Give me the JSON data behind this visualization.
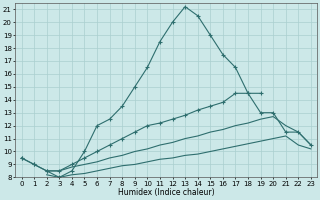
{
  "xlabel": "Humidex (Indice chaleur)",
  "bg_color": "#cce8e8",
  "grid_color": "#aacfcf",
  "line_color": "#2e6e6e",
  "xlim": [
    -0.5,
    23.5
  ],
  "ylim": [
    8,
    21.5
  ],
  "x_ticks": [
    0,
    1,
    2,
    3,
    4,
    5,
    6,
    7,
    8,
    9,
    10,
    11,
    12,
    13,
    14,
    15,
    16,
    17,
    18,
    19,
    20,
    21,
    22,
    23
  ],
  "y_ticks": [
    8,
    9,
    10,
    11,
    12,
    13,
    14,
    15,
    16,
    17,
    18,
    19,
    20,
    21
  ],
  "series1_x": [
    0,
    1,
    2,
    3,
    4,
    5,
    6,
    7,
    8,
    9,
    10,
    11,
    12,
    13,
    14,
    15,
    16,
    17,
    18,
    19
  ],
  "series1_y": [
    9.5,
    9.0,
    8.5,
    8.0,
    8.5,
    10.0,
    12.0,
    12.5,
    13.5,
    15.0,
    16.5,
    18.5,
    20.0,
    21.2,
    20.5,
    19.0,
    17.5,
    16.5,
    14.5,
    14.5
  ],
  "series2_x": [
    0,
    1,
    2,
    3,
    4,
    5,
    6,
    7,
    8,
    9,
    10,
    11,
    12,
    13,
    14,
    15,
    16,
    17,
    18,
    19,
    20,
    21,
    22,
    23
  ],
  "series2_y": [
    9.5,
    9.0,
    8.5,
    8.5,
    9.0,
    9.5,
    10.0,
    10.5,
    11.0,
    11.5,
    12.0,
    12.2,
    12.5,
    12.8,
    13.2,
    13.5,
    13.8,
    14.5,
    14.5,
    13.0,
    13.0,
    11.5,
    11.5,
    10.5
  ],
  "series3_x": [
    2,
    3,
    4,
    5,
    6,
    7,
    8,
    9,
    10,
    11,
    12,
    13,
    14,
    15,
    16,
    17,
    18,
    19,
    20,
    21,
    22,
    23
  ],
  "series3_y": [
    8.5,
    8.5,
    8.8,
    9.0,
    9.2,
    9.5,
    9.7,
    10.0,
    10.2,
    10.5,
    10.7,
    11.0,
    11.2,
    11.5,
    11.7,
    12.0,
    12.2,
    12.5,
    12.7,
    12.0,
    11.5,
    10.5
  ],
  "series4_x": [
    2,
    3,
    4,
    5,
    6,
    7,
    8,
    9,
    10,
    11,
    12,
    13,
    14,
    15,
    16,
    17,
    18,
    19,
    20,
    21,
    22,
    23
  ],
  "series4_y": [
    8.2,
    8.0,
    8.2,
    8.3,
    8.5,
    8.7,
    8.9,
    9.0,
    9.2,
    9.4,
    9.5,
    9.7,
    9.8,
    10.0,
    10.2,
    10.4,
    10.6,
    10.8,
    11.0,
    11.2,
    10.5,
    10.2
  ]
}
